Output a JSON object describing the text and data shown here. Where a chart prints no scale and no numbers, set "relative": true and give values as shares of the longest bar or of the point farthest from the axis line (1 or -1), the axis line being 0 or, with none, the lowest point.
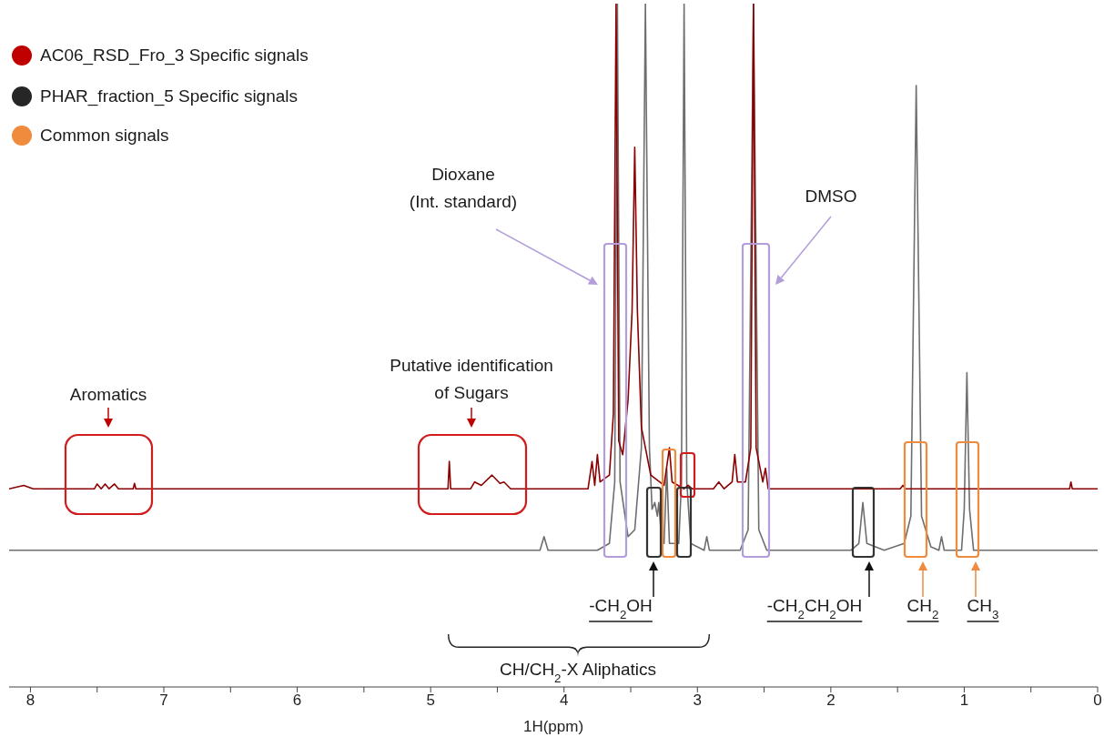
{
  "chart_data": {
    "type": "line",
    "relative": true,
    "xlabel": "1H(ppm)",
    "xlim": [
      8.16,
      0
    ],
    "xticks": [
      8,
      {
        "value": 7.5,
        "label": null
      },
      7,
      {
        "value": 6.5,
        "label": null
      },
      6,
      {
        "value": 5.5,
        "label": null
      },
      5,
      {
        "value": 4.5,
        "label": null
      },
      4,
      {
        "value": 3.5,
        "label": null
      },
      3,
      {
        "value": 2.5,
        "label": null
      },
      2,
      {
        "value": 1.5,
        "label": null
      },
      1,
      {
        "value": 0.5,
        "label": null
      },
      0
    ],
    "series": [
      {
        "color": "#6e6e6e",
        "x": [
          8.16,
          4.25,
          4.18,
          4.15,
          4.12,
          3.75,
          3.66,
          3.62,
          3.6,
          3.58,
          3.52,
          3.47,
          3.42,
          3.39,
          3.36,
          3.34,
          3.32,
          3.3,
          3.29,
          3.27,
          3.25,
          3.23,
          3.21,
          3.14,
          3.12,
          3.1,
          3.08,
          3.05,
          2.95,
          2.93,
          2.91,
          2.68,
          2.62,
          2.58,
          2.54,
          2.48,
          1.85,
          1.79,
          1.76,
          1.73,
          1.6,
          1.45,
          1.4,
          1.36,
          1.32,
          1.25,
          1.19,
          1.17,
          1.15,
          1.02,
          1.0,
          0.98,
          0.96,
          0.93,
          0
        ],
        "values": [
          0.2,
          0.2,
          0.2,
          0.22,
          0.2,
          0.2,
          0.21,
          0.3,
          1,
          0.3,
          0.22,
          0.23,
          0.35,
          1,
          0.35,
          0.26,
          0.27,
          0.25,
          0.27,
          0.22,
          0.21,
          0.32,
          0.21,
          0.21,
          0.3,
          1,
          0.3,
          0.21,
          0.2,
          0.22,
          0.2,
          0.2,
          0.23,
          1,
          0.23,
          0.2,
          0.2,
          0.21,
          0.27,
          0.21,
          0.2,
          0.21,
          0.25,
          0.88,
          0.25,
          0.205,
          0.2,
          0.22,
          0.2,
          0.2,
          0.26,
          0.46,
          0.26,
          0.2,
          0.2
        ]
      },
      {
        "color": "#8b0000",
        "x": [
          8.16,
          8.05,
          7.98,
          7.52,
          7.5,
          7.47,
          7.44,
          7.41,
          7.37,
          7.34,
          7.23,
          7.22,
          7.21,
          4.9,
          4.87,
          4.86,
          4.85,
          4.7,
          4.67,
          4.62,
          4.54,
          4.48,
          4.45,
          4.4,
          3.82,
          3.79,
          3.77,
          3.75,
          3.73,
          3.66,
          3.63,
          3.61,
          3.59,
          3.56,
          3.52,
          3.49,
          3.47,
          3.45,
          3.42,
          3.35,
          3.25,
          3.21,
          3.19,
          3.1,
          3.07,
          3.04,
          2.88,
          2.84,
          2.8,
          2.74,
          2.72,
          2.7,
          2.64,
          2.6,
          2.58,
          2.56,
          2.51,
          2.49,
          2.47,
          1.48,
          1.46,
          1.44,
          0.21,
          0.2,
          0.19,
          0
        ],
        "values": [
          0.29,
          0.295,
          0.29,
          0.29,
          0.297,
          0.29,
          0.297,
          0.29,
          0.297,
          0.29,
          0.29,
          0.298,
          0.29,
          0.29,
          0.29,
          0.33,
          0.29,
          0.29,
          0.3,
          0.295,
          0.31,
          0.298,
          0.3,
          0.29,
          0.29,
          0.33,
          0.295,
          0.34,
          0.3,
          0.31,
          0.4,
          1,
          0.36,
          0.34,
          0.42,
          0.55,
          0.79,
          0.55,
          0.38,
          0.31,
          0.295,
          0.35,
          0.3,
          0.29,
          0.295,
          0.29,
          0.29,
          0.3,
          0.29,
          0.3,
          0.34,
          0.3,
          0.3,
          0.35,
          1,
          0.35,
          0.3,
          0.32,
          0.29,
          0.29,
          0.295,
          0.29,
          0.29,
          0.3,
          0.29,
          0.29
        ]
      }
    ],
    "annotations": [
      "Aromatics",
      "Putative identification\nof Sugars",
      "Dioxane\n(Int. standard)",
      "DMSO",
      "-CH$_{2}$OH",
      "-CH$_{2}$CH$_{2}$OH",
      "CH$_{2}$",
      "CH$_{3}$",
      "CH/CH$_{2}$-X Aliphatics",
      "AC06_RSD_Fro_3 Specific signals",
      "PHAR_fraction_5 Specific signals",
      "Common signals"
    ]
  }
}
